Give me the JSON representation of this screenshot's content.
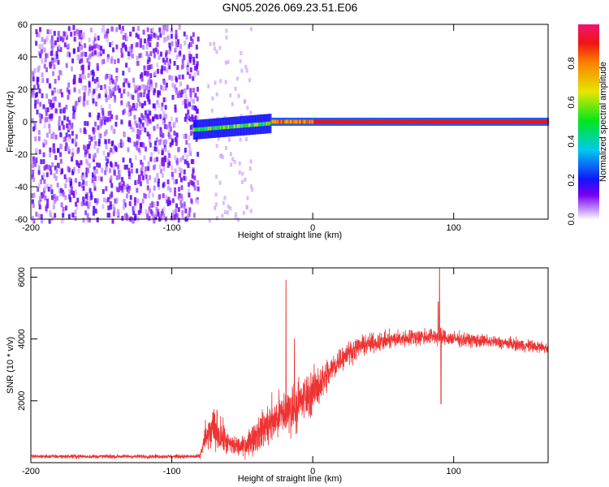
{
  "chart_data": [
    {
      "type": "heatmap",
      "title": "GN05.2026.069.23.51.E06",
      "xlabel": "Height of straight line (km)",
      "ylabel": "Frequency (Hz)",
      "xlim": [
        -200,
        167
      ],
      "ylim": [
        -60,
        60
      ],
      "xticks": [
        -200,
        -100,
        0,
        100
      ],
      "yticks": [
        -60,
        -40,
        -20,
        0,
        20,
        40,
        60
      ],
      "colorbar": {
        "label": "Normalized spectral amplitude",
        "range": [
          0,
          1
        ],
        "ticks": [
          "0.0",
          "0.2",
          "0.4",
          "0.6",
          "0.8"
        ]
      },
      "regions": [
        {
          "description": "broadband noise",
          "x_range": [
            -200,
            -82
          ],
          "freq_range": [
            -60,
            60
          ],
          "amplitude": 0.15
        },
        {
          "description": "sparse faint noise",
          "x_range": [
            -75,
            -45
          ],
          "freq_range": [
            -60,
            60
          ],
          "amplitude": 0.05
        },
        {
          "description": "carrier band",
          "x_range": [
            -85,
            167
          ],
          "center_freq": 0,
          "amplitude": 0.95
        }
      ]
    },
    {
      "type": "line",
      "xlabel": "Height of straight line (km)",
      "ylabel": "SNR (10 * v/v)",
      "xlim": [
        -200,
        167
      ],
      "ylim": [
        0,
        6300
      ],
      "xticks": [
        -200,
        -100,
        0,
        100
      ],
      "yticks": [
        2000,
        4000,
        6000
      ],
      "color": "#ee3333",
      "envelope": [
        {
          "x": -200,
          "y": 200,
          "noise": 80
        },
        {
          "x": -80,
          "y": 200,
          "noise": 80
        },
        {
          "x": -77,
          "y": 700,
          "noise": 600
        },
        {
          "x": -70,
          "y": 1100,
          "noise": 900
        },
        {
          "x": -60,
          "y": 600,
          "noise": 500
        },
        {
          "x": -50,
          "y": 500,
          "noise": 400
        },
        {
          "x": -40,
          "y": 900,
          "noise": 700
        },
        {
          "x": -30,
          "y": 1300,
          "noise": 900
        },
        {
          "x": -20,
          "y": 1600,
          "noise": 1000
        },
        {
          "x": -10,
          "y": 1900,
          "noise": 1000
        },
        {
          "x": 0,
          "y": 2300,
          "noise": 900
        },
        {
          "x": 10,
          "y": 2800,
          "noise": 700
        },
        {
          "x": 20,
          "y": 3400,
          "noise": 500
        },
        {
          "x": 35,
          "y": 3800,
          "noise": 400
        },
        {
          "x": 60,
          "y": 4000,
          "noise": 350
        },
        {
          "x": 85,
          "y": 4100,
          "noise": 350
        },
        {
          "x": 100,
          "y": 4000,
          "noise": 300
        },
        {
          "x": 130,
          "y": 3900,
          "noise": 250
        },
        {
          "x": 167,
          "y": 3700,
          "noise": 250
        }
      ],
      "spikes": [
        {
          "x": -19,
          "y": 5900
        },
        {
          "x": -13,
          "y": 4000
        },
        {
          "x": 89,
          "y": 5200
        },
        {
          "x": 90,
          "y": 6300
        },
        {
          "x": 91,
          "y": 1900
        }
      ]
    }
  ]
}
